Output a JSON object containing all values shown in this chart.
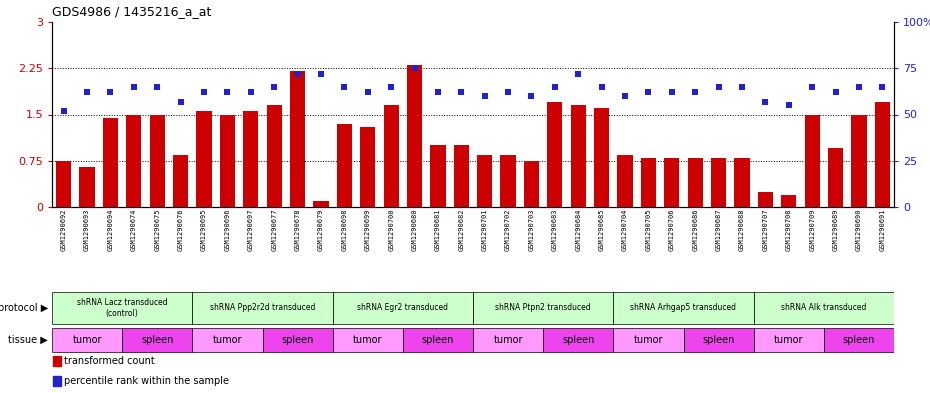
{
  "title": "GDS4986 / 1435216_a_at",
  "samples": [
    "GSM1290692",
    "GSM1290693",
    "GSM1290694",
    "GSM1290674",
    "GSM1290675",
    "GSM1290676",
    "GSM1290695",
    "GSM1290696",
    "GSM1290697",
    "GSM1290677",
    "GSM1290678",
    "GSM1290679",
    "GSM1290698",
    "GSM1290699",
    "GSM1290700",
    "GSM1290680",
    "GSM1290681",
    "GSM1290682",
    "GSM1290701",
    "GSM1290702",
    "GSM1290703",
    "GSM1290683",
    "GSM1290684",
    "GSM1290685",
    "GSM1290704",
    "GSM1290705",
    "GSM1290706",
    "GSM1290686",
    "GSM1290687",
    "GSM1290688",
    "GSM1290707",
    "GSM1290708",
    "GSM1290709",
    "GSM1290689",
    "GSM1290690",
    "GSM1290691"
  ],
  "bar_values": [
    0.75,
    0.65,
    1.45,
    1.5,
    1.5,
    0.85,
    1.55,
    1.5,
    1.55,
    1.65,
    2.2,
    0.1,
    1.35,
    1.3,
    1.65,
    2.3,
    1.0,
    1.0,
    0.85,
    0.85,
    0.75,
    1.7,
    1.65,
    1.6,
    0.85,
    0.8,
    0.8,
    0.8,
    0.8,
    0.8,
    0.25,
    0.2,
    1.5,
    0.95,
    1.5,
    1.7
  ],
  "dot_values": [
    52,
    62,
    62,
    65,
    65,
    57,
    62,
    62,
    62,
    65,
    72,
    72,
    65,
    62,
    65,
    75,
    62,
    62,
    60,
    62,
    60,
    65,
    72,
    65,
    60,
    62,
    62,
    62,
    65,
    65,
    57,
    55,
    65,
    62,
    65,
    65
  ],
  "bar_color": "#cc0000",
  "dot_color": "#2222cc",
  "ylim_left": [
    0,
    3
  ],
  "ylim_right": [
    0,
    100
  ],
  "yticks_left": [
    0,
    0.75,
    1.5,
    2.25,
    3
  ],
  "ytick_labels_left": [
    "0",
    "0.75",
    "1.5",
    "2.25",
    "3"
  ],
  "yticks_right": [
    0,
    25,
    50,
    75,
    100
  ],
  "ytick_labels_right": [
    "0",
    "25",
    "50",
    "75",
    "100%"
  ],
  "hline_values": [
    0.75,
    1.5,
    2.25
  ],
  "protocols": [
    {
      "label": "shRNA Lacz transduced\n(control)",
      "start": 0,
      "end": 5,
      "color": "#ccffcc"
    },
    {
      "label": "shRNA Ppp2r2d transduced",
      "start": 6,
      "end": 11,
      "color": "#ccffcc"
    },
    {
      "label": "shRNA Egr2 transduced",
      "start": 12,
      "end": 17,
      "color": "#ccffcc"
    },
    {
      "label": "shRNA Ptpn2 transduced",
      "start": 18,
      "end": 23,
      "color": "#ccffcc"
    },
    {
      "label": "shRNA Arhgap5 transduced",
      "start": 24,
      "end": 29,
      "color": "#ccffcc"
    },
    {
      "label": "shRNA Alk transduced",
      "start": 30,
      "end": 35,
      "color": "#ccffcc"
    }
  ],
  "tissues": [
    {
      "label": "tumor",
      "start": 0,
      "end": 2,
      "color": "#ff99ff"
    },
    {
      "label": "spleen",
      "start": 3,
      "end": 5,
      "color": "#ee44ee"
    },
    {
      "label": "tumor",
      "start": 6,
      "end": 8,
      "color": "#ff99ff"
    },
    {
      "label": "spleen",
      "start": 9,
      "end": 11,
      "color": "#ee44ee"
    },
    {
      "label": "tumor",
      "start": 12,
      "end": 14,
      "color": "#ff99ff"
    },
    {
      "label": "spleen",
      "start": 15,
      "end": 17,
      "color": "#ee44ee"
    },
    {
      "label": "tumor",
      "start": 18,
      "end": 20,
      "color": "#ff99ff"
    },
    {
      "label": "spleen",
      "start": 21,
      "end": 23,
      "color": "#ee44ee"
    },
    {
      "label": "tumor",
      "start": 24,
      "end": 26,
      "color": "#ff99ff"
    },
    {
      "label": "spleen",
      "start": 27,
      "end": 29,
      "color": "#ee44ee"
    },
    {
      "label": "tumor",
      "start": 30,
      "end": 32,
      "color": "#ff99ff"
    },
    {
      "label": "spleen",
      "start": 33,
      "end": 35,
      "color": "#ee44ee"
    }
  ],
  "legend_items": [
    {
      "label": "transformed count",
      "color": "#cc0000"
    },
    {
      "label": "percentile rank within the sample",
      "color": "#2222cc"
    }
  ],
  "fig_width": 9.3,
  "fig_height": 3.93,
  "dpi": 100
}
